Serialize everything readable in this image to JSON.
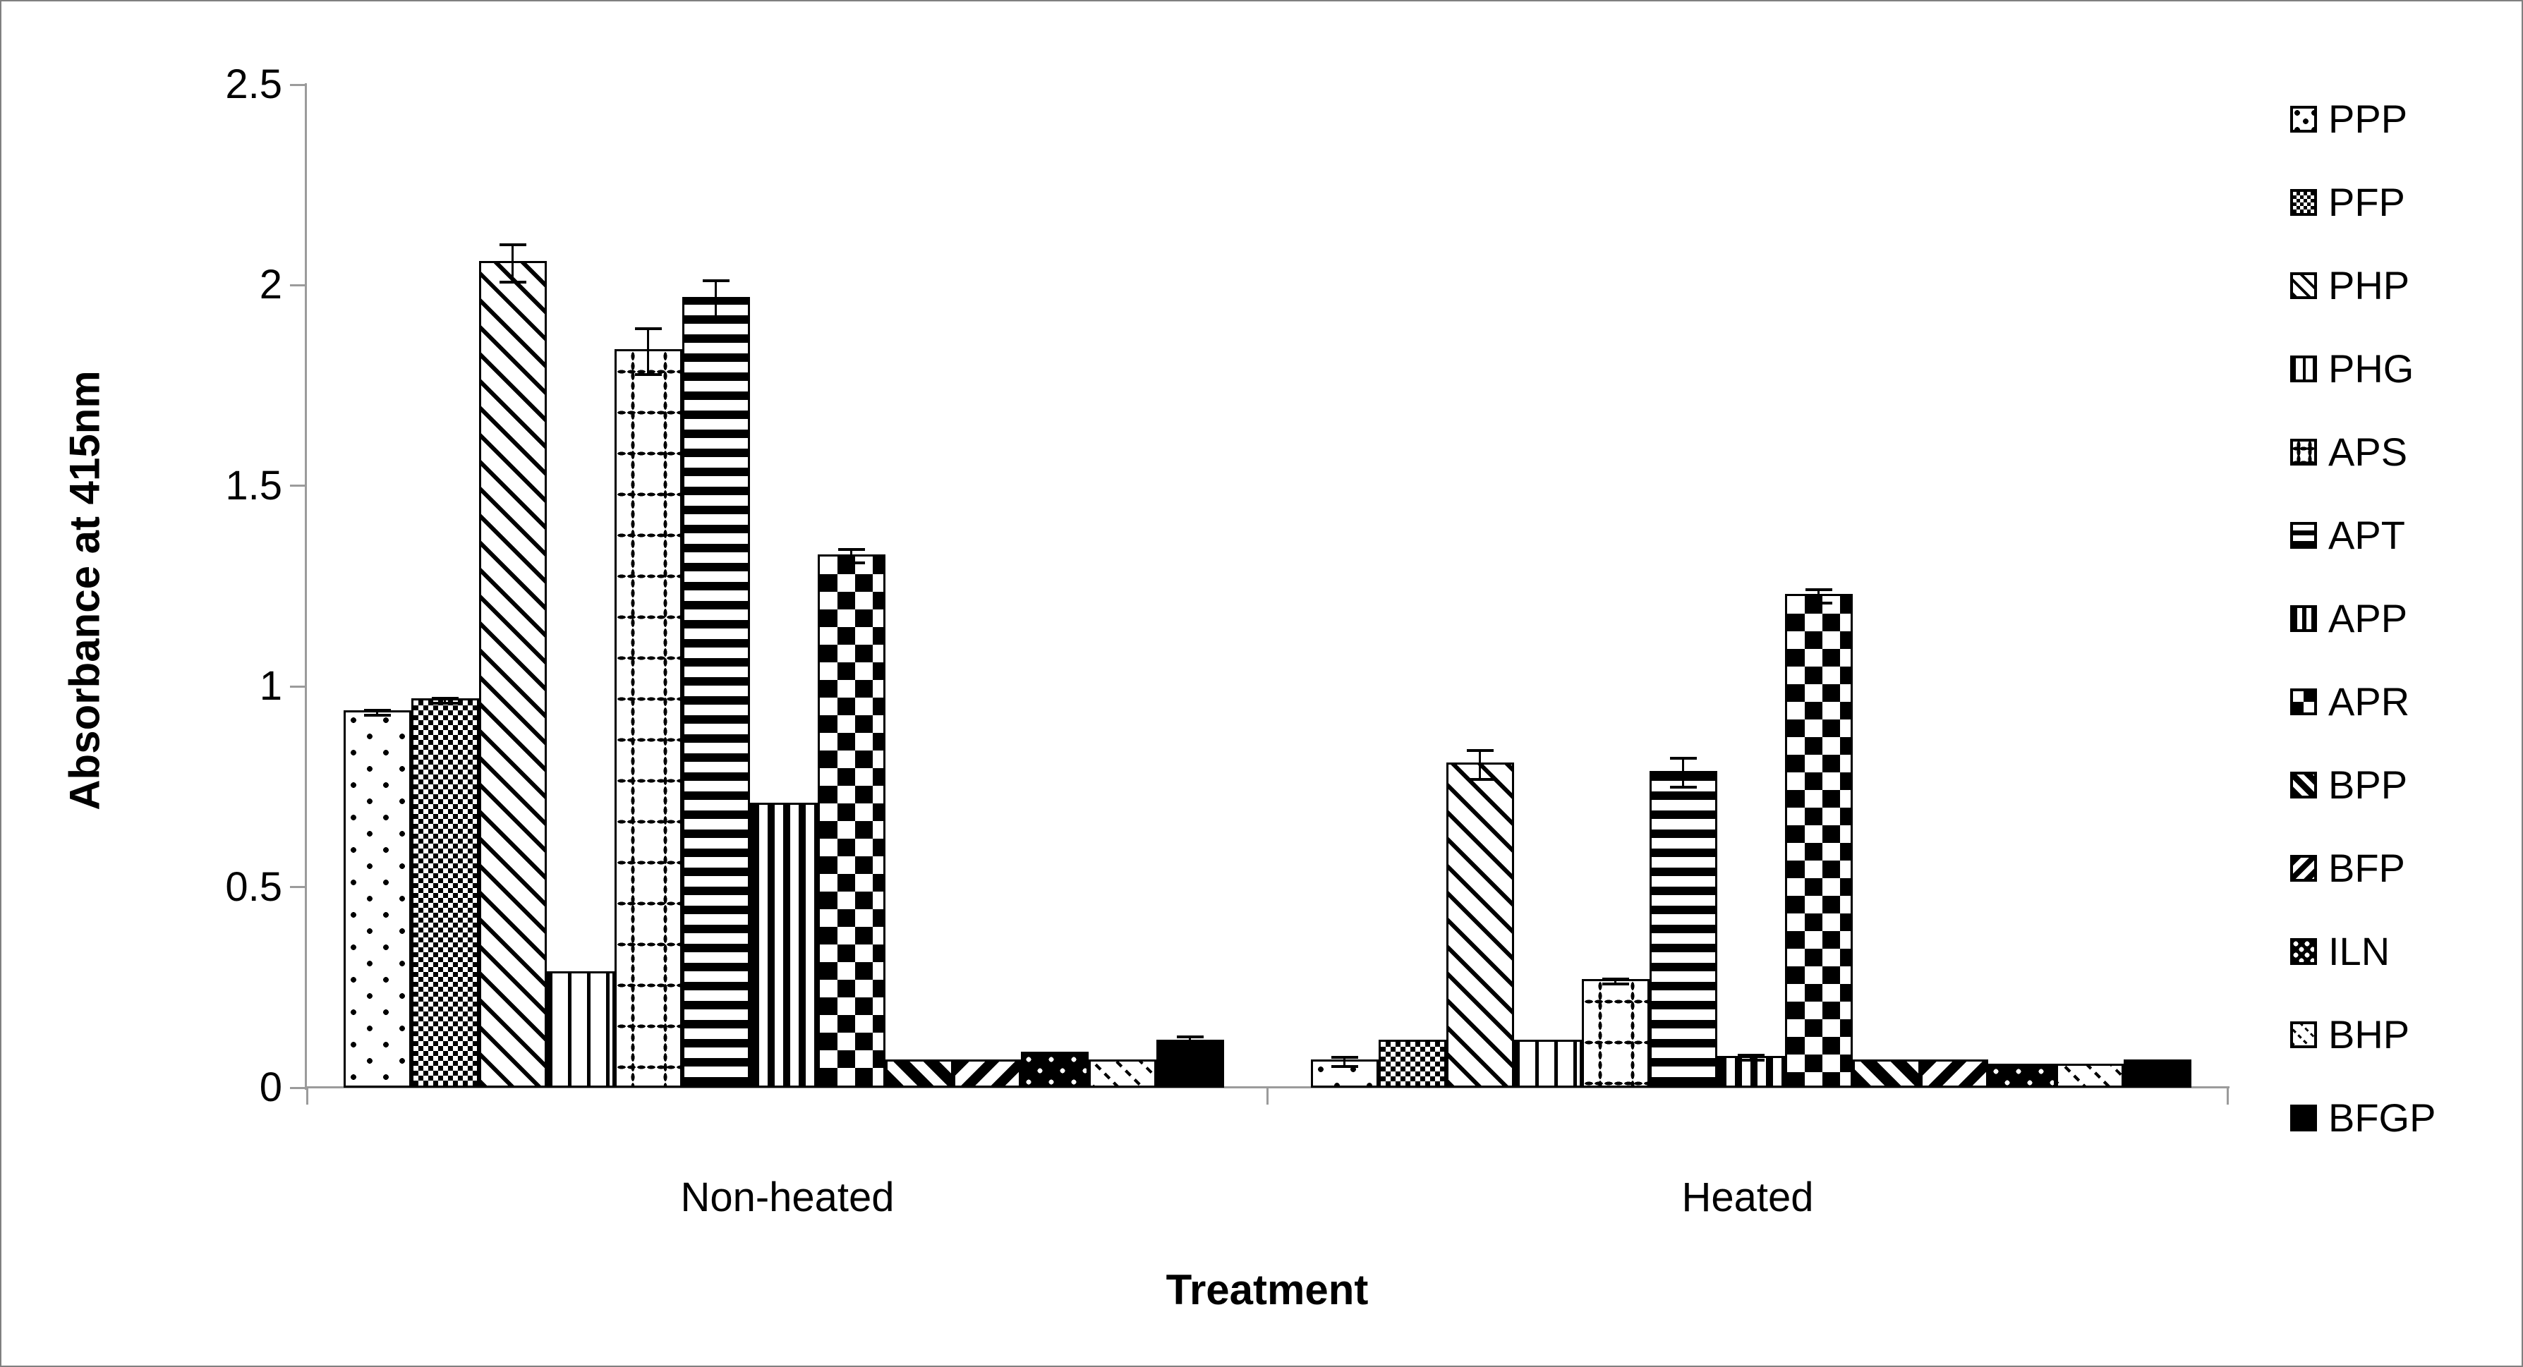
{
  "figure": {
    "background": "#ffffff",
    "border_color": "#808080",
    "axis_color": "#9b9b9b",
    "bar_outline_color": "#000000"
  },
  "chart_data": {
    "type": "bar",
    "title": "",
    "xlabel": "Treatment",
    "ylabel": "Absorbance at 415nm",
    "categories": [
      "Non-heated",
      "Heated"
    ],
    "ylim": [
      0,
      2.5
    ],
    "yticks": [
      0,
      0.5,
      1,
      1.5,
      2,
      2.5
    ],
    "ytick_labels": [
      "0",
      "0.5",
      "1",
      "1.5",
      "2",
      "2.5"
    ],
    "grid": false,
    "legend_position": "right",
    "series": [
      {
        "name": "PPP",
        "pattern": "sparse-dots",
        "values": [
          0.94,
          0.07
        ],
        "errors": [
          0.01,
          0.015
        ]
      },
      {
        "name": "PFP",
        "pattern": "fine-checker",
        "values": [
          0.97,
          0.12
        ],
        "errors": [
          0.01,
          0
        ]
      },
      {
        "name": "PHP",
        "pattern": "diagonal-stripes-down",
        "values": [
          2.06,
          0.81
        ],
        "errors": [
          0.05,
          0.04
        ]
      },
      {
        "name": "PHG",
        "pattern": "vertical-stripes-sparse",
        "values": [
          0.29,
          0.12
        ],
        "errors": [
          0,
          0
        ]
      },
      {
        "name": "APS",
        "pattern": "dotted-grid",
        "values": [
          1.84,
          0.27
        ],
        "errors": [
          0.06,
          0.01
        ]
      },
      {
        "name": "APT",
        "pattern": "horizontal-stripes",
        "values": [
          1.97,
          0.79
        ],
        "errors": [
          0.05,
          0.04
        ]
      },
      {
        "name": "APP",
        "pattern": "vertical-stripes-dense",
        "values": [
          0.71,
          0.08
        ],
        "errors": [
          0,
          0.01
        ]
      },
      {
        "name": "APR",
        "pattern": "large-checker",
        "values": [
          1.33,
          1.23
        ],
        "errors": [
          0.02,
          0.02
        ]
      },
      {
        "name": "BPP",
        "pattern": "diagonal-bold-down",
        "values": [
          0.07,
          0.07
        ],
        "errors": [
          0,
          0
        ]
      },
      {
        "name": "BFP",
        "pattern": "diagonal-bold-up",
        "values": [
          0.07,
          0.07
        ],
        "errors": [
          0,
          0
        ]
      },
      {
        "name": "ILN",
        "pattern": "black-with-white-dots",
        "values": [
          0.09,
          0.06
        ],
        "errors": [
          0,
          0
        ]
      },
      {
        "name": "BHP",
        "pattern": "diagonal-dashes-light",
        "values": [
          0.07,
          0.06
        ],
        "errors": [
          0,
          0
        ]
      },
      {
        "name": "BFGP",
        "pattern": "solid-black",
        "values": [
          0.12,
          0.07
        ],
        "errors": [
          0.015,
          0
        ]
      }
    ]
  }
}
